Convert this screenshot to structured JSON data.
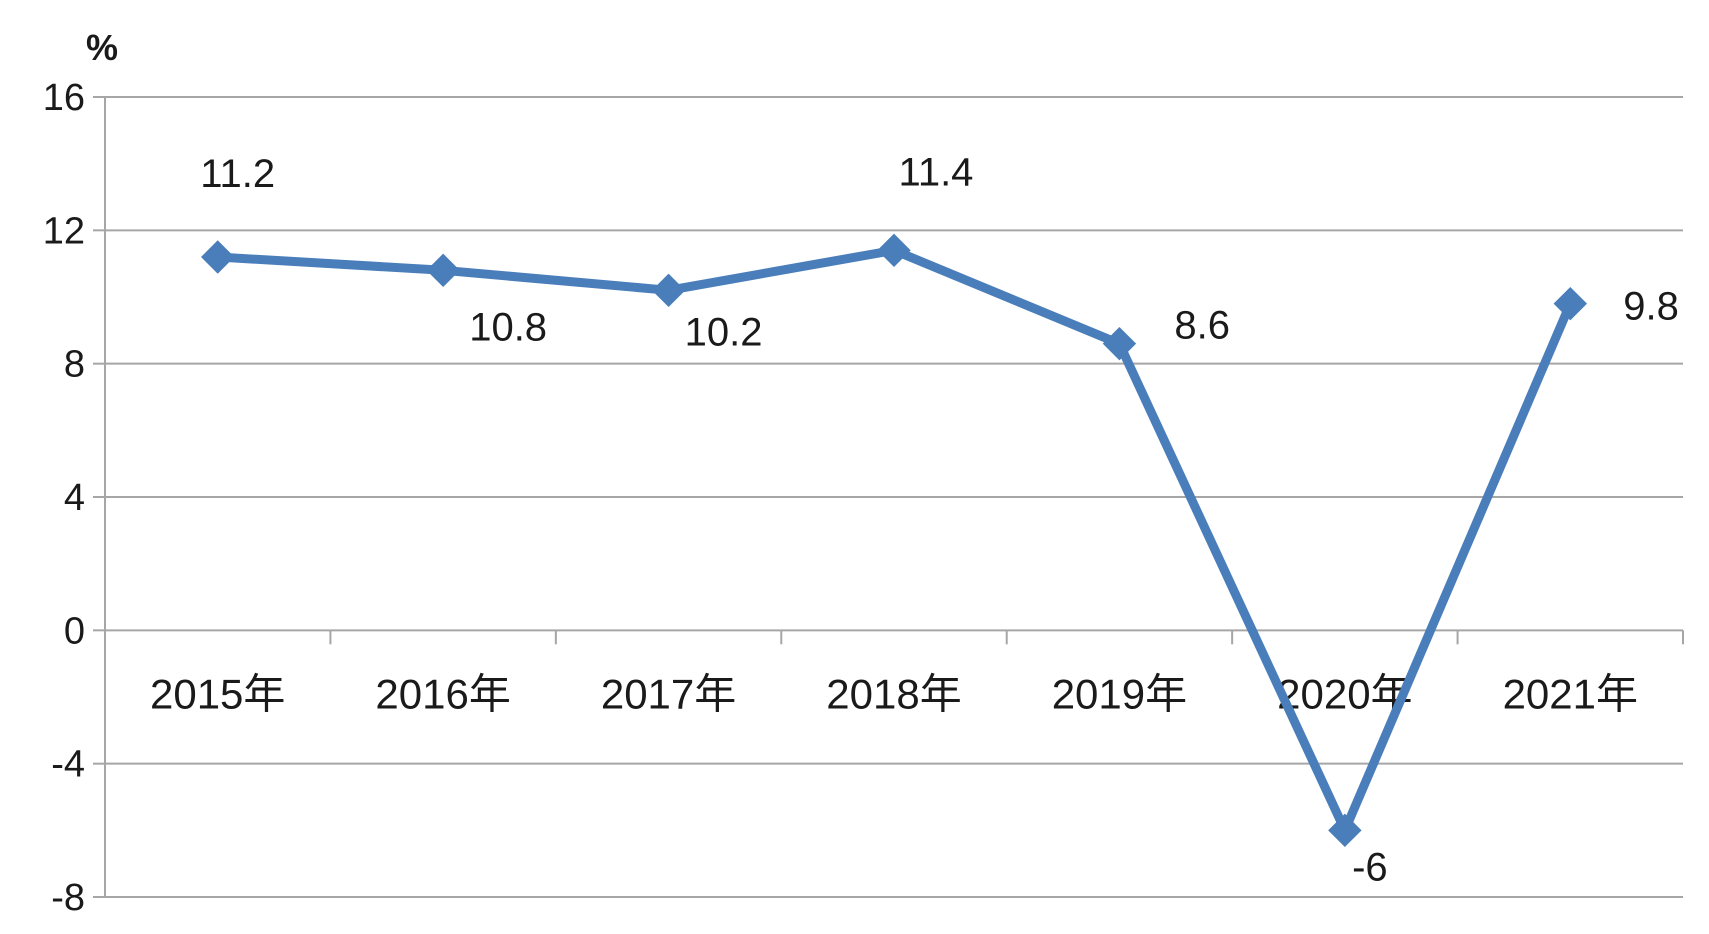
{
  "chart_data": {
    "type": "line",
    "title": "",
    "xlabel": "",
    "ylabel": "",
    "unit": "%",
    "categories": [
      "2015年",
      "2016年",
      "2017年",
      "2018年",
      "2019年",
      "2020年",
      "2021年"
    ],
    "series": [
      {
        "values": [
          11.2,
          10.8,
          10.2,
          11.4,
          8.6,
          -6,
          9.8
        ]
      }
    ],
    "data_labels": [
      "11.2",
      "10.8",
      "10.2",
      "11.4",
      "8.6",
      "-6",
      "9.8"
    ],
    "ylim": [
      -8,
      16
    ],
    "yticks": [
      -8,
      -4,
      0,
      4,
      8,
      12,
      16
    ],
    "ytick_labels": [
      "-8",
      "-4",
      "0",
      "4",
      "8",
      "12",
      "16"
    ],
    "grid": true,
    "legend": "none",
    "marker": "diamond",
    "colors": {
      "line": "#4a7ebb",
      "grid": "#a6a6a6",
      "axis": "#a6a6a6"
    }
  }
}
